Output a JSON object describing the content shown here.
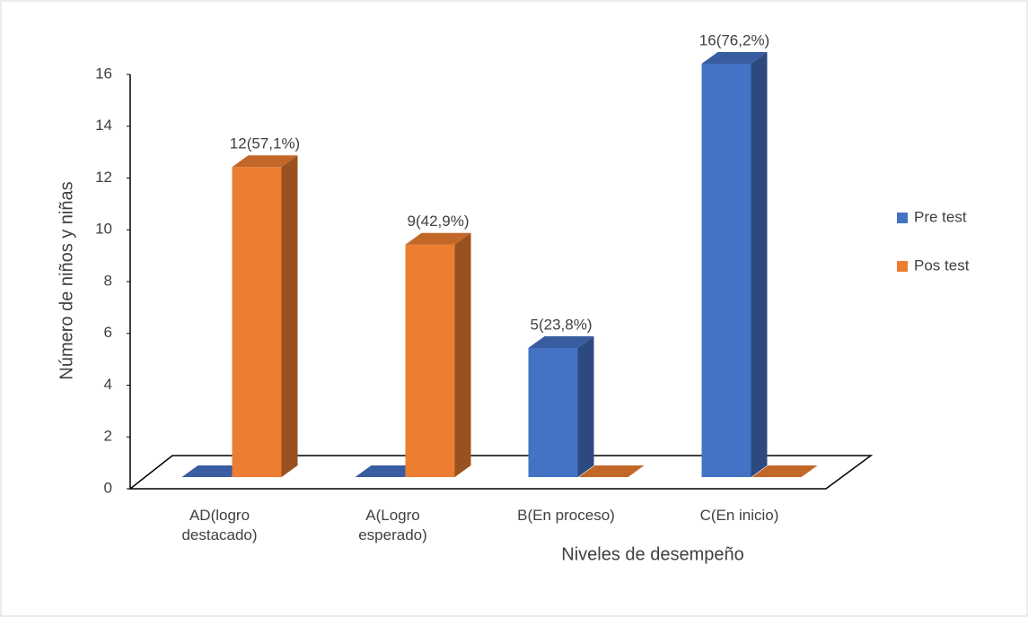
{
  "chart_data": {
    "type": "bar3d",
    "categories": [
      "AD(logro destacado)",
      "A(Logro esperado)",
      "B(En proceso)",
      "C(En inicio)"
    ],
    "series": [
      {
        "name": "Pre test",
        "color": "#4472c4",
        "values": [
          0,
          0,
          5,
          16
        ],
        "value_labels": [
          null,
          null,
          "5(23,8%)",
          "16(76,2%)"
        ]
      },
      {
        "name": "Pos test",
        "color": "#ed7d31",
        "values": [
          12,
          9,
          0,
          0
        ],
        "value_labels": [
          "12(57,1%)",
          "9(42,9%)",
          null,
          null
        ]
      }
    ],
    "x_label": "Niveles de desempeño",
    "y_label": "Número de niños y niñas",
    "ylim": [
      0,
      16
    ],
    "yticks": [
      0,
      2,
      4,
      6,
      8,
      10,
      12,
      14,
      16
    ],
    "legend": "right"
  }
}
